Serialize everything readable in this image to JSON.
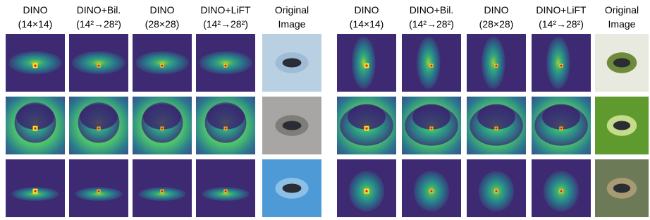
{
  "panels": [
    {
      "columns": [
        {
          "title": "DINO",
          "subtitle": "(14×14)"
        },
        {
          "title": "DINO+Bil.",
          "subtitle": "(14²→28²)"
        },
        {
          "title": "DINO",
          "subtitle": "(28×28)"
        },
        {
          "title": "DINO+LiFT",
          "subtitle": "(14²→28²)"
        },
        {
          "title": "Original",
          "subtitle": "Image"
        }
      ]
    },
    {
      "columns": [
        {
          "title": "DINO",
          "subtitle": "(14×14)"
        },
        {
          "title": "DINO+Bil.",
          "subtitle": "(14²→28²)"
        },
        {
          "title": "DINO",
          "subtitle": "(28×28)"
        },
        {
          "title": "DINO+LiFT",
          "subtitle": "(14²→28²)"
        },
        {
          "title": "Original",
          "subtitle": "Image"
        }
      ]
    }
  ]
}
